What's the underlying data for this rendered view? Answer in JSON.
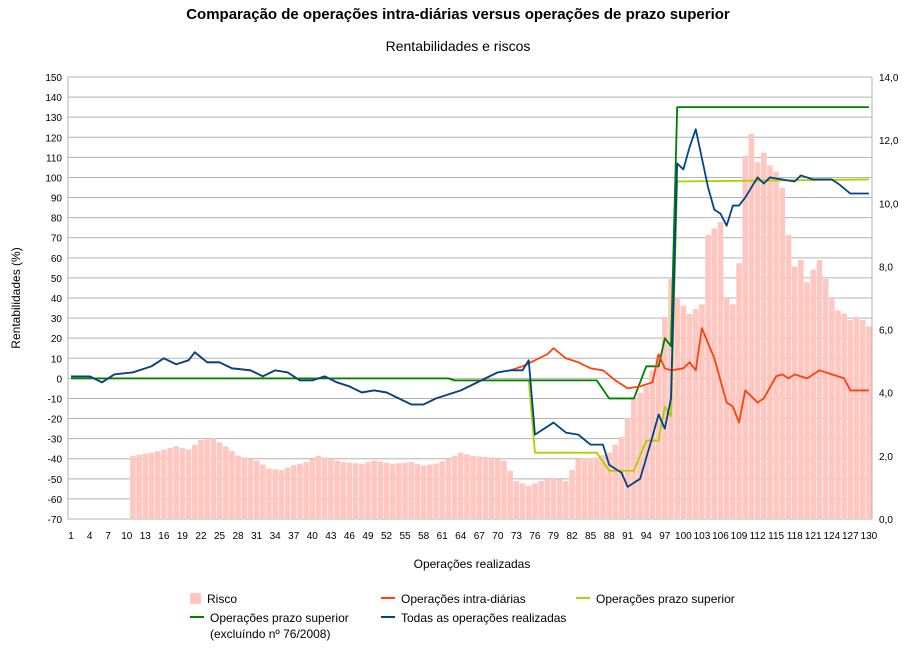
{
  "title": "Comparação de operações intra-diárias versus operações de prazo superior",
  "subtitle": "Rentabilidades e riscos",
  "colors": {
    "risk": "#ffc7c0",
    "intraday": "#ff420e",
    "longterm": "#aecf00",
    "longterm_excl": "#008000",
    "all": "#004586",
    "grid": "#b3b3b3"
  },
  "chart_data": {
    "type": "bar+line",
    "xlabel": "Operações realizadas",
    "ylabel": "Rentabilidades (%)",
    "ylim": [
      -70,
      150
    ],
    "y_ticks": [
      "150",
      "140",
      "130",
      "120",
      "110",
      "100",
      "90",
      "80",
      "70",
      "60",
      "50",
      "40",
      "30",
      "20",
      "10",
      "0",
      "-10",
      "-20",
      "-30",
      "-40",
      "-50",
      "-60",
      "-70"
    ],
    "y2lim": [
      0,
      14
    ],
    "y2_ticks": [
      "14,0",
      "12,0",
      "10,0",
      "8,0",
      "6,0",
      "4,0",
      "2,0",
      "0,0"
    ],
    "x_tick_labels": [
      "1",
      "4",
      "7",
      "10",
      "13",
      "16",
      "19",
      "22",
      "25",
      "28",
      "31",
      "34",
      "37",
      "40",
      "43",
      "46",
      "49",
      "52",
      "55",
      "58",
      "61",
      "64",
      "67",
      "70",
      "73",
      "76",
      "79",
      "82",
      "85",
      "88",
      "91",
      "94",
      "97",
      "100",
      "103",
      "106",
      "109",
      "112",
      "115",
      "118",
      "121",
      "124",
      "127",
      "130"
    ],
    "grid": "horizontal",
    "legend_placement": "bottom",
    "series": [
      {
        "name": "Risco",
        "kind": "bar",
        "axis": "right",
        "points": [
          [
            10,
            0
          ],
          [
            11,
            2.0
          ],
          [
            14,
            2.1
          ],
          [
            16,
            2.2
          ],
          [
            18,
            2.3
          ],
          [
            20,
            2.2
          ],
          [
            22,
            2.5
          ],
          [
            24,
            2.55
          ],
          [
            26,
            2.3
          ],
          [
            28,
            2.0
          ],
          [
            31,
            1.85
          ],
          [
            33,
            1.6
          ],
          [
            35,
            1.55
          ],
          [
            37,
            1.7
          ],
          [
            39,
            1.8
          ],
          [
            41,
            2.0
          ],
          [
            43,
            1.9
          ],
          [
            45,
            1.8
          ],
          [
            48,
            1.75
          ],
          [
            50,
            1.85
          ],
          [
            53,
            1.75
          ],
          [
            56,
            1.8
          ],
          [
            58,
            1.7
          ],
          [
            60,
            1.75
          ],
          [
            62,
            1.9
          ],
          [
            64,
            2.1
          ],
          [
            66,
            2.0
          ],
          [
            69,
            1.95
          ],
          [
            71,
            1.85
          ],
          [
            73,
            1.2
          ],
          [
            75,
            1.05
          ],
          [
            77,
            1.2
          ],
          [
            79,
            1.3
          ],
          [
            81,
            1.2
          ],
          [
            83,
            1.9
          ],
          [
            86,
            1.95
          ],
          [
            88,
            2.1
          ],
          [
            90,
            2.6
          ],
          [
            92,
            3.8
          ],
          [
            94,
            4.2
          ],
          [
            96,
            5.2
          ],
          [
            98,
            7.6
          ],
          [
            99,
            7.0
          ],
          [
            101,
            6.5
          ],
          [
            103,
            6.8
          ],
          [
            104,
            9.0
          ],
          [
            106,
            9.4
          ],
          [
            107,
            7.0
          ],
          [
            108,
            6.8
          ],
          [
            109,
            8.1
          ],
          [
            110,
            11.5
          ],
          [
            111,
            12.2
          ],
          [
            112,
            11.3
          ],
          [
            113,
            11.6
          ],
          [
            114,
            11.2
          ],
          [
            115,
            11.0
          ],
          [
            116,
            10.5
          ],
          [
            117,
            9.0
          ],
          [
            118,
            8.0
          ],
          [
            119,
            8.2
          ],
          [
            120,
            7.5
          ],
          [
            121,
            7.9
          ],
          [
            122,
            8.2
          ],
          [
            123,
            7.6
          ],
          [
            124,
            7.0
          ],
          [
            125,
            6.6
          ],
          [
            126,
            6.5
          ],
          [
            127,
            6.3
          ],
          [
            128,
            6.4
          ],
          [
            129,
            6.3
          ],
          [
            130,
            6.1
          ]
        ]
      },
      {
        "name": "Operações intra-diárias",
        "kind": "line",
        "axis": "left",
        "points": [
          [
            1,
            1
          ],
          [
            4,
            1
          ],
          [
            6,
            -2
          ],
          [
            8,
            2
          ],
          [
            11,
            3
          ],
          [
            14,
            6
          ],
          [
            16,
            10
          ],
          [
            18,
            7
          ],
          [
            20,
            9
          ],
          [
            21,
            13
          ],
          [
            23,
            8
          ],
          [
            25,
            8
          ],
          [
            27,
            5
          ],
          [
            30,
            4
          ],
          [
            32,
            1
          ],
          [
            34,
            4
          ],
          [
            36,
            3
          ],
          [
            38,
            -1
          ],
          [
            40,
            -1
          ],
          [
            42,
            1
          ],
          [
            44,
            -2
          ],
          [
            46,
            -4
          ],
          [
            48,
            -7
          ],
          [
            50,
            -6
          ],
          [
            52,
            -7
          ],
          [
            54,
            -10
          ],
          [
            56,
            -13
          ],
          [
            58,
            -13
          ],
          [
            60,
            -10
          ],
          [
            62,
            -8
          ],
          [
            64,
            -6
          ],
          [
            66,
            -3
          ],
          [
            68,
            0
          ],
          [
            70,
            3
          ],
          [
            72,
            4
          ],
          [
            74,
            6
          ],
          [
            76,
            9
          ],
          [
            78,
            12
          ],
          [
            79,
            15
          ],
          [
            81,
            10
          ],
          [
            83,
            8
          ],
          [
            85,
            5
          ],
          [
            87,
            4
          ],
          [
            89,
            -1
          ],
          [
            91,
            -5
          ],
          [
            93,
            -4
          ],
          [
            95,
            -2
          ],
          [
            96,
            12
          ],
          [
            97,
            5
          ],
          [
            98,
            4
          ],
          [
            100,
            5
          ],
          [
            101,
            8
          ],
          [
            102,
            4
          ],
          [
            103,
            25
          ],
          [
            105,
            10
          ],
          [
            107,
            -12
          ],
          [
            108,
            -14
          ],
          [
            109,
            -22
          ],
          [
            110,
            -6
          ],
          [
            112,
            -12
          ],
          [
            113,
            -10
          ],
          [
            115,
            1
          ],
          [
            116,
            2
          ],
          [
            117,
            0
          ],
          [
            118,
            2
          ],
          [
            120,
            0
          ],
          [
            121,
            2
          ],
          [
            122,
            4
          ],
          [
            124,
            2
          ],
          [
            126,
            0
          ],
          [
            127,
            -6
          ],
          [
            130,
            -6
          ]
        ]
      },
      {
        "name": "Operações prazo superior",
        "kind": "line",
        "axis": "left",
        "points": [
          [
            1,
            0
          ],
          [
            62,
            0
          ],
          [
            63,
            -1
          ],
          [
            75,
            -1
          ],
          [
            76,
            -37
          ],
          [
            86,
            -37
          ],
          [
            88,
            -46
          ],
          [
            92,
            -46
          ],
          [
            94,
            -31
          ],
          [
            96,
            -31
          ],
          [
            97,
            -14
          ],
          [
            98,
            -19
          ],
          [
            99,
            98
          ],
          [
            130,
            99
          ]
        ]
      },
      {
        "name": "Operações prazo superior\n(excluíndo nº 76/2008)",
        "kind": "line",
        "axis": "left",
        "points": [
          [
            1,
            0
          ],
          [
            62,
            0
          ],
          [
            63,
            -1
          ],
          [
            86,
            -1
          ],
          [
            88,
            -10
          ],
          [
            92,
            -10
          ],
          [
            94,
            6
          ],
          [
            96,
            6
          ],
          [
            97,
            20
          ],
          [
            98,
            16
          ],
          [
            99,
            135
          ],
          [
            130,
            135
          ]
        ]
      },
      {
        "name": "Todas as operações realizadas",
        "kind": "line",
        "axis": "left",
        "points": [
          [
            1,
            1
          ],
          [
            4,
            1
          ],
          [
            6,
            -2
          ],
          [
            8,
            2
          ],
          [
            11,
            3
          ],
          [
            14,
            6
          ],
          [
            16,
            10
          ],
          [
            18,
            7
          ],
          [
            20,
            9
          ],
          [
            21,
            13
          ],
          [
            23,
            8
          ],
          [
            25,
            8
          ],
          [
            27,
            5
          ],
          [
            30,
            4
          ],
          [
            32,
            1
          ],
          [
            34,
            4
          ],
          [
            36,
            3
          ],
          [
            38,
            -1
          ],
          [
            40,
            -1
          ],
          [
            42,
            1
          ],
          [
            44,
            -2
          ],
          [
            46,
            -4
          ],
          [
            48,
            -7
          ],
          [
            50,
            -6
          ],
          [
            52,
            -7
          ],
          [
            54,
            -10
          ],
          [
            56,
            -13
          ],
          [
            58,
            -13
          ],
          [
            60,
            -10
          ],
          [
            62,
            -8
          ],
          [
            64,
            -6
          ],
          [
            66,
            -3
          ],
          [
            68,
            0
          ],
          [
            70,
            3
          ],
          [
            72,
            4
          ],
          [
            74,
            4
          ],
          [
            75,
            9
          ],
          [
            76,
            -28
          ],
          [
            78,
            -24
          ],
          [
            79,
            -22
          ],
          [
            81,
            -27
          ],
          [
            83,
            -28
          ],
          [
            85,
            -33
          ],
          [
            87,
            -33
          ],
          [
            88,
            -43
          ],
          [
            90,
            -47
          ],
          [
            91,
            -54
          ],
          [
            93,
            -50
          ],
          [
            95,
            -29
          ],
          [
            96,
            -18
          ],
          [
            97,
            -25
          ],
          [
            98,
            -10
          ],
          [
            99,
            107
          ],
          [
            100,
            104
          ],
          [
            101,
            115
          ],
          [
            102,
            124
          ],
          [
            104,
            95
          ],
          [
            105,
            84
          ],
          [
            106,
            82
          ],
          [
            107,
            76
          ],
          [
            108,
            86
          ],
          [
            109,
            86
          ],
          [
            110,
            90
          ],
          [
            112,
            100
          ],
          [
            113,
            97
          ],
          [
            114,
            100
          ],
          [
            116,
            99
          ],
          [
            118,
            98
          ],
          [
            119,
            101
          ],
          [
            121,
            99
          ],
          [
            124,
            99
          ],
          [
            125,
            97
          ],
          [
            127,
            92
          ],
          [
            130,
            92
          ]
        ]
      }
    ]
  }
}
